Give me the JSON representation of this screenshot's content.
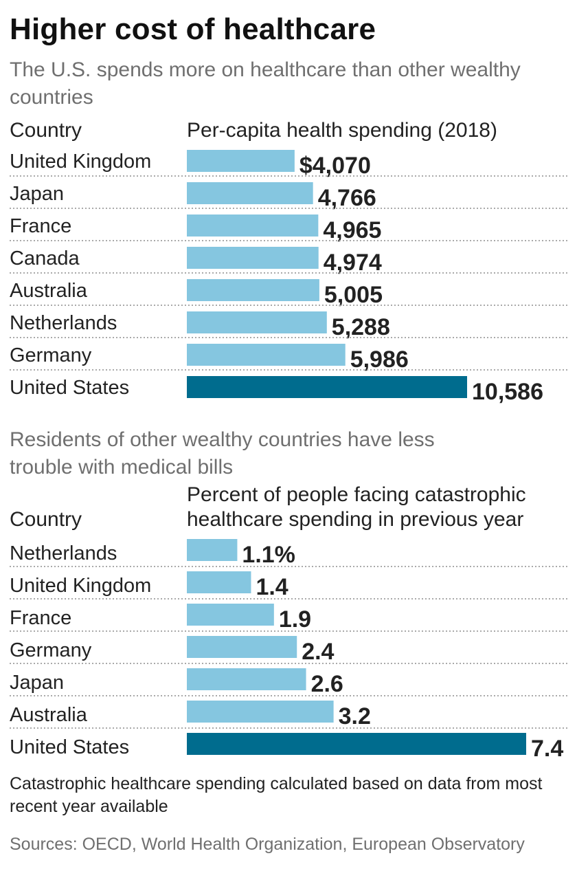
{
  "title": "Higher cost of healthcare",
  "colors": {
    "bar": "#85c6e0",
    "highlight": "#006c8e",
    "divider": "#a9a9a9"
  },
  "chart_data": [
    {
      "type": "bar",
      "subtitle": "The U.S. spends more on healthcare than other wealthy countries",
      "category_header": "Country",
      "value_header": "Per-capita health spending (2018)",
      "categories": [
        "United Kingdom",
        "Japan",
        "France",
        "Canada",
        "Australia",
        "Netherlands",
        "Germany",
        "United States"
      ],
      "values": [
        4070,
        4766,
        4965,
        4974,
        5005,
        5288,
        5986,
        10586
      ],
      "labels": [
        "$4,070",
        "4,766",
        "4,965",
        "4,974",
        "5,005",
        "5,288",
        "5,986",
        "10,586"
      ],
      "highlight": "United States",
      "xlim": [
        0,
        10586
      ]
    },
    {
      "type": "bar",
      "subtitle": "Residents of other wealthy countries have less trouble with medical bills",
      "category_header": "Country",
      "value_header": "Percent of people facing catastrophic healthcare spending in previous year",
      "categories": [
        "Netherlands",
        "United Kingdom",
        "France",
        "Germany",
        "Japan",
        "Australia",
        "United States"
      ],
      "values": [
        1.1,
        1.4,
        1.9,
        2.4,
        2.6,
        3.2,
        7.4
      ],
      "labels": [
        "1.1%",
        "1.4",
        "1.9",
        "2.4",
        "2.6",
        "3.2",
        "7.4"
      ],
      "highlight": "United States",
      "xlim": [
        0,
        7.4
      ]
    }
  ],
  "note": "Catastrophic healthcare spending calculated based on data from most recent year available",
  "source": "Sources: OECD, World Health Organization, European Observatory"
}
